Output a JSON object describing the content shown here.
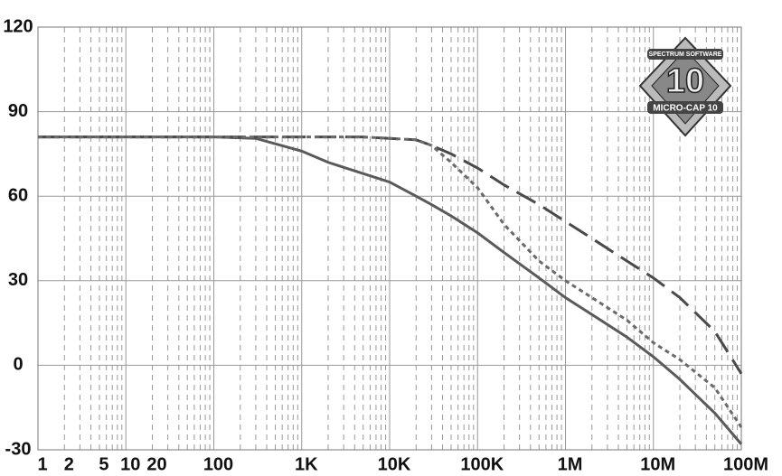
{
  "chart_data": {
    "type": "line",
    "xscale": "log",
    "x": [
      1,
      10,
      100,
      300,
      1000,
      2000,
      5000,
      10000,
      20000,
      30000,
      50000,
      100000,
      200000,
      500000,
      1000000,
      2000000,
      5000000,
      10000000,
      20000000,
      50000000,
      100000000
    ],
    "series": [
      {
        "color": "#5a5a5a",
        "style": "solid",
        "values": [
          81,
          81,
          81,
          80.5,
          76,
          72,
          68,
          65,
          60,
          57,
          53,
          47,
          40,
          31,
          24,
          18,
          10,
          3,
          -5,
          -17,
          -28
        ]
      },
      {
        "color": "#4a4a4a",
        "style": "dashed",
        "values": [
          81,
          81,
          81,
          81,
          81,
          81,
          81,
          80.5,
          80,
          78,
          75,
          70,
          64,
          57,
          51,
          45,
          37,
          31,
          24,
          12,
          -3
        ]
      },
      {
        "color": "#6a6a6a",
        "style": "dotted",
        "values": [
          81,
          81,
          81,
          81,
          81,
          81,
          81,
          80.5,
          80,
          78,
          72,
          63,
          50,
          37,
          30,
          24,
          16,
          8,
          2,
          -8,
          -22
        ]
      }
    ],
    "xlim": [
      1,
      100000000
    ],
    "xticks": [
      1,
      2,
      5,
      10,
      20,
      100,
      {
        "value": 1000,
        "label": "1K"
      },
      {
        "value": 10000,
        "label": "10K"
      },
      {
        "value": 100000,
        "label": "100K"
      },
      {
        "value": 1000000,
        "label": "1M"
      },
      {
        "value": 10000000,
        "label": "10M"
      },
      {
        "value": 100000000,
        "label": "100M"
      }
    ],
    "ylim": [
      -30,
      120
    ],
    "yticks": [
      -30,
      0,
      30,
      60,
      90,
      120
    ],
    "grid": true,
    "minor_grid": true
  },
  "logo": {
    "top": "SPECTRUM SOFTWARE",
    "number": "10",
    "bottom": "MICRO-CAP 10"
  }
}
